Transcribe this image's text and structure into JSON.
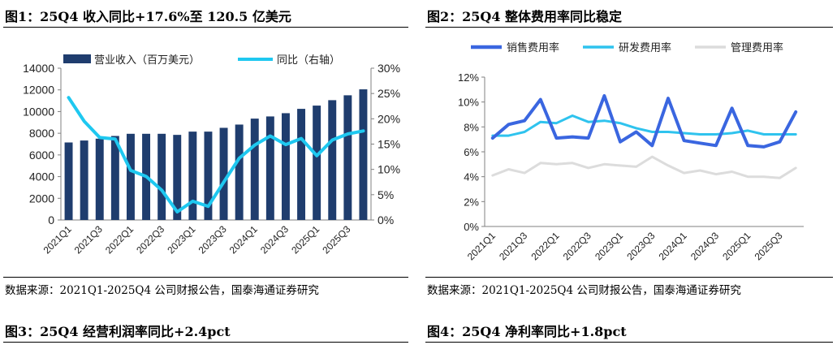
{
  "figures": {
    "fig1": {
      "title": "图1：25Q4 收入同比+17.6%至 120.5 亿美元",
      "source": "数据来源：2021Q1-2025Q4 公司财报公告，国泰海通证券研究"
    },
    "fig2": {
      "title": "图2：25Q4 整体费用率同比稳定",
      "source": "数据来源：2021Q1-2025Q4 公司财报公告，国泰海通证券研究"
    },
    "fig3": {
      "title": "图3：25Q4 经营利润率同比+2.4pct"
    },
    "fig4": {
      "title": "图4：25Q4 净利率同比+1.8pct"
    }
  },
  "colors": {
    "bar": "#1f3d6e",
    "yoy": "#1ec8f0",
    "sales": "#3a66e0",
    "rnd": "#2fc3ee",
    "admin": "#dcdcdc",
    "axis": "#808080"
  },
  "chart_data": [
    {
      "type": "bar+line",
      "categories": [
        "2021Q1",
        "2021Q2",
        "2021Q3",
        "2021Q4",
        "2022Q1",
        "2022Q2",
        "2022Q3",
        "2022Q4",
        "2023Q1",
        "2023Q2",
        "2023Q3",
        "2023Q4",
        "2024Q1",
        "2024Q2",
        "2024Q3",
        "2024Q4",
        "2025Q1",
        "2025Q2",
        "2025Q3",
        "2025Q4"
      ],
      "x_tick_labels": [
        "2021Q1",
        "",
        "2021Q3",
        "",
        "2022Q1",
        "",
        "2022Q3",
        "",
        "2023Q1",
        "",
        "2023Q3",
        "",
        "2024Q1",
        "",
        "2024Q3",
        "",
        "2025Q1",
        "",
        "2025Q3",
        ""
      ],
      "series": [
        {
          "name": "营业收入（百万美元）",
          "type": "bar",
          "axis": "left",
          "values": [
            7150,
            7330,
            7500,
            7750,
            7950,
            7950,
            7950,
            7850,
            8150,
            8150,
            8500,
            8800,
            9350,
            9550,
            9850,
            10250,
            10550,
            11050,
            11500,
            12050
          ]
        },
        {
          "name": "同比（右轴）",
          "type": "line",
          "axis": "right",
          "values": [
            24.2,
            19.5,
            16.3,
            16.0,
            9.8,
            8.6,
            5.9,
            1.6,
            3.7,
            2.7,
            7.5,
            12.2,
            14.8,
            16.6,
            14.9,
            16.1,
            12.7,
            15.8,
            17.0,
            17.6
          ]
        }
      ],
      "ylim_left": [
        0,
        14000
      ],
      "y_ticks_left": [
        "0",
        "2000",
        "4000",
        "6000",
        "8000",
        "10000",
        "12000",
        "14000"
      ],
      "ylim_right": [
        0,
        30
      ],
      "y_ticks_right": [
        "0%",
        "5%",
        "10%",
        "15%",
        "20%",
        "25%",
        "30%"
      ],
      "legend": "top",
      "grid": false
    },
    {
      "type": "line",
      "categories": [
        "2021Q1",
        "2021Q2",
        "2021Q3",
        "2021Q4",
        "2022Q1",
        "2022Q2",
        "2022Q3",
        "2022Q4",
        "2023Q1",
        "2023Q2",
        "2023Q3",
        "2023Q4",
        "2024Q1",
        "2024Q2",
        "2024Q3",
        "2024Q4",
        "2025Q1",
        "2025Q2",
        "2025Q3",
        "2025Q4"
      ],
      "x_tick_labels": [
        "2021Q1",
        "",
        "2021Q3",
        "",
        "2022Q1",
        "",
        "2022Q3",
        "",
        "2023Q1",
        "",
        "2023Q3",
        "",
        "2024Q1",
        "",
        "2024Q3",
        "",
        "2025Q1",
        "",
        "2025Q3",
        ""
      ],
      "series": [
        {
          "name": "销售费用率",
          "values": [
            7.1,
            8.2,
            8.5,
            10.2,
            7.1,
            7.2,
            7.1,
            10.5,
            6.8,
            7.6,
            6.5,
            10.3,
            6.9,
            6.7,
            6.5,
            9.5,
            6.5,
            6.4,
            6.8,
            9.2
          ]
        },
        {
          "name": "研发费用率",
          "values": [
            7.3,
            7.3,
            7.6,
            8.4,
            8.3,
            8.9,
            8.4,
            8.5,
            8.3,
            7.9,
            7.6,
            7.6,
            7.5,
            7.4,
            7.4,
            7.5,
            7.7,
            7.4,
            7.4,
            7.4
          ]
        },
        {
          "name": "管理费用率",
          "values": [
            4.1,
            4.6,
            4.3,
            5.1,
            5.0,
            5.1,
            4.7,
            5.0,
            4.9,
            4.8,
            5.6,
            4.9,
            4.3,
            4.5,
            4.2,
            4.4,
            4.0,
            4.0,
            3.9,
            4.7
          ]
        }
      ],
      "ylim": [
        0,
        12
      ],
      "y_ticks": [
        "0%",
        "2%",
        "4%",
        "6%",
        "8%",
        "10%",
        "12%"
      ],
      "legend": "top",
      "grid": false
    }
  ]
}
